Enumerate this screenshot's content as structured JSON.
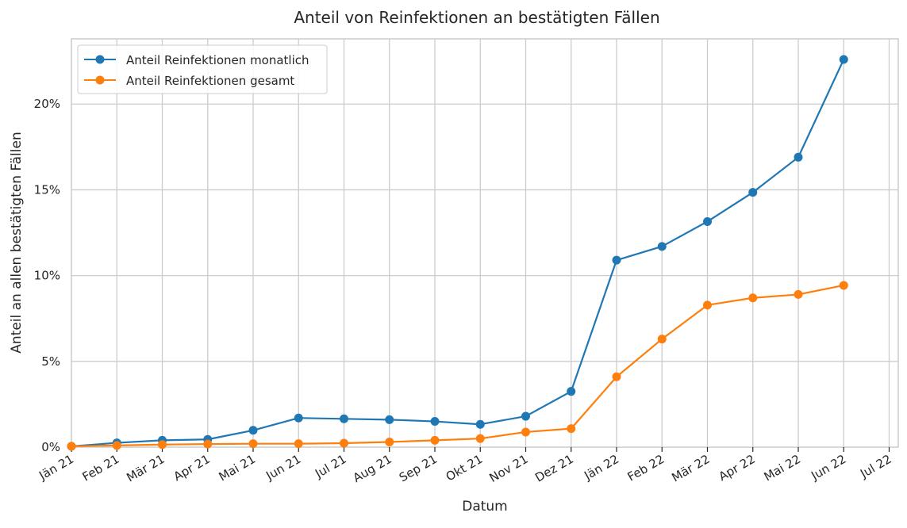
{
  "chart_data": {
    "type": "line",
    "title": "Anteil von Reinfektionen an bestätigten Fällen",
    "xlabel": "Datum",
    "ylabel": "Anteil an allen bestätigten Fällen",
    "x_ticks": [
      "Jän 21",
      "Feb 21",
      "Mär 21",
      "Apr 21",
      "Mai 21",
      "Jun 21",
      "Jul 21",
      "Aug 21",
      "Sep 21",
      "Okt 21",
      "Nov 21",
      "Dez 21",
      "Jän 22",
      "Feb 22",
      "Mär 22",
      "Apr 22",
      "Mai 22",
      "Jun 22",
      "Jul 22"
    ],
    "y_ticks": [
      "0%",
      "5%",
      "10%",
      "15%",
      "20%"
    ],
    "y_tick_values": [
      0,
      5,
      10,
      15,
      20
    ],
    "ylim": [
      0,
      23.8
    ],
    "grid": true,
    "legend_position": "top-left",
    "series": [
      {
        "name": "Anteil Reinfektionen monatlich",
        "color": "#1f77b4",
        "values": [
          0.05,
          0.25,
          0.4,
          0.45,
          0.98,
          1.7,
          1.65,
          1.6,
          1.5,
          1.33,
          1.8,
          3.25,
          10.9,
          11.7,
          13.15,
          14.85,
          16.9,
          22.6
        ]
      },
      {
        "name": "Anteil Reinfektionen gesamt",
        "color": "#ff7f0e",
        "values": [
          0.05,
          0.1,
          0.15,
          0.18,
          0.2,
          0.2,
          0.23,
          0.3,
          0.4,
          0.5,
          0.88,
          1.08,
          4.1,
          6.3,
          8.28,
          8.7,
          8.9,
          9.43
        ]
      }
    ]
  }
}
